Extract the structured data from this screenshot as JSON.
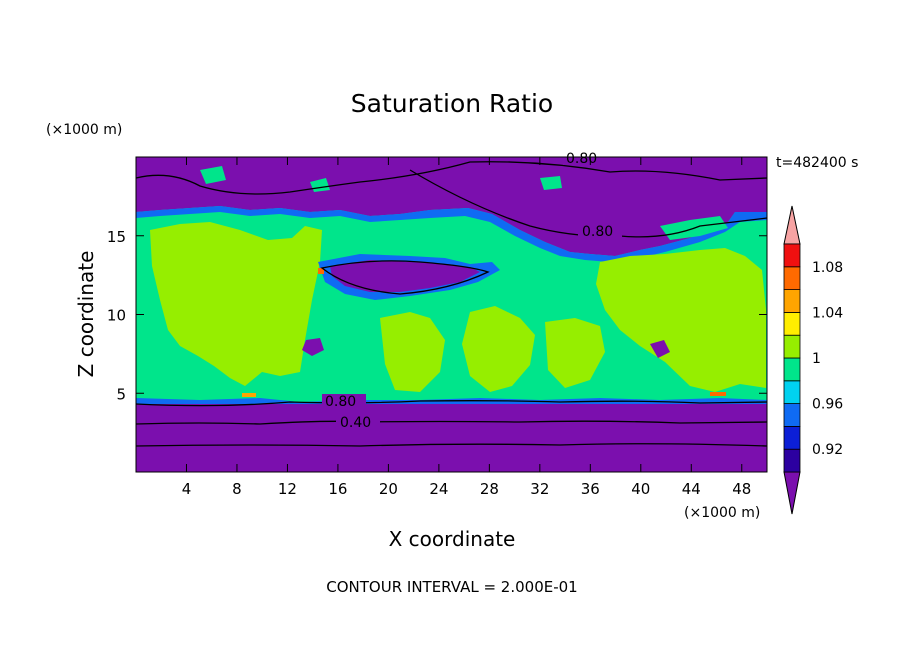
{
  "chart_data": {
    "type": "heatmap",
    "title": "Saturation Ratio",
    "xlabel": "X coordinate",
    "ylabel": "Z coordinate",
    "x_unit": "(×1000 m)",
    "y_unit": "(×1000 m)",
    "time_label": "t=482400 s",
    "footer": "CONTOUR INTERVAL = 2.000E-01",
    "xlim": [
      0,
      50
    ],
    "ylim": [
      0,
      20
    ],
    "x_ticks": [
      4,
      8,
      12,
      16,
      20,
      24,
      28,
      32,
      36,
      40,
      44,
      48
    ],
    "y_ticks": [
      5,
      10,
      15
    ],
    "contour_labels": [
      {
        "text": "0.80",
        "x": 35.8,
        "z": 19.7
      },
      {
        "text": "0.80",
        "x": 36.5,
        "z": 15.0
      },
      {
        "text": "0.80",
        "x": 16.5,
        "z": 4.5
      },
      {
        "text": "0.40",
        "x": 17.3,
        "z": 3.3
      }
    ],
    "colorbar": {
      "labels": [
        "1.08",
        "1.04",
        "1",
        "0.96",
        "0.92"
      ],
      "bands": [
        {
          "from": null,
          "to": 0.9,
          "color": "#7b0fae"
        },
        {
          "from": 0.9,
          "to": 0.92,
          "color": "#2c00a0"
        },
        {
          "from": 0.92,
          "to": 0.94,
          "color": "#0c1fd6"
        },
        {
          "from": 0.94,
          "to": 0.96,
          "color": "#0f6bf3"
        },
        {
          "from": 0.96,
          "to": 0.98,
          "color": "#00d2f0"
        },
        {
          "from": 0.98,
          "to": 1.0,
          "color": "#00e58b"
        },
        {
          "from": 1.0,
          "to": 1.02,
          "color": "#96ee00"
        },
        {
          "from": 1.02,
          "to": 1.04,
          "color": "#ffee00"
        },
        {
          "from": 1.04,
          "to": 1.06,
          "color": "#ffa500"
        },
        {
          "from": 1.06,
          "to": 1.08,
          "color": "#ff6a00"
        },
        {
          "from": 1.08,
          "to": 1.1,
          "color": "#f01010"
        },
        {
          "from": 1.1,
          "to": null,
          "color": "#f7a3a3"
        }
      ]
    }
  }
}
